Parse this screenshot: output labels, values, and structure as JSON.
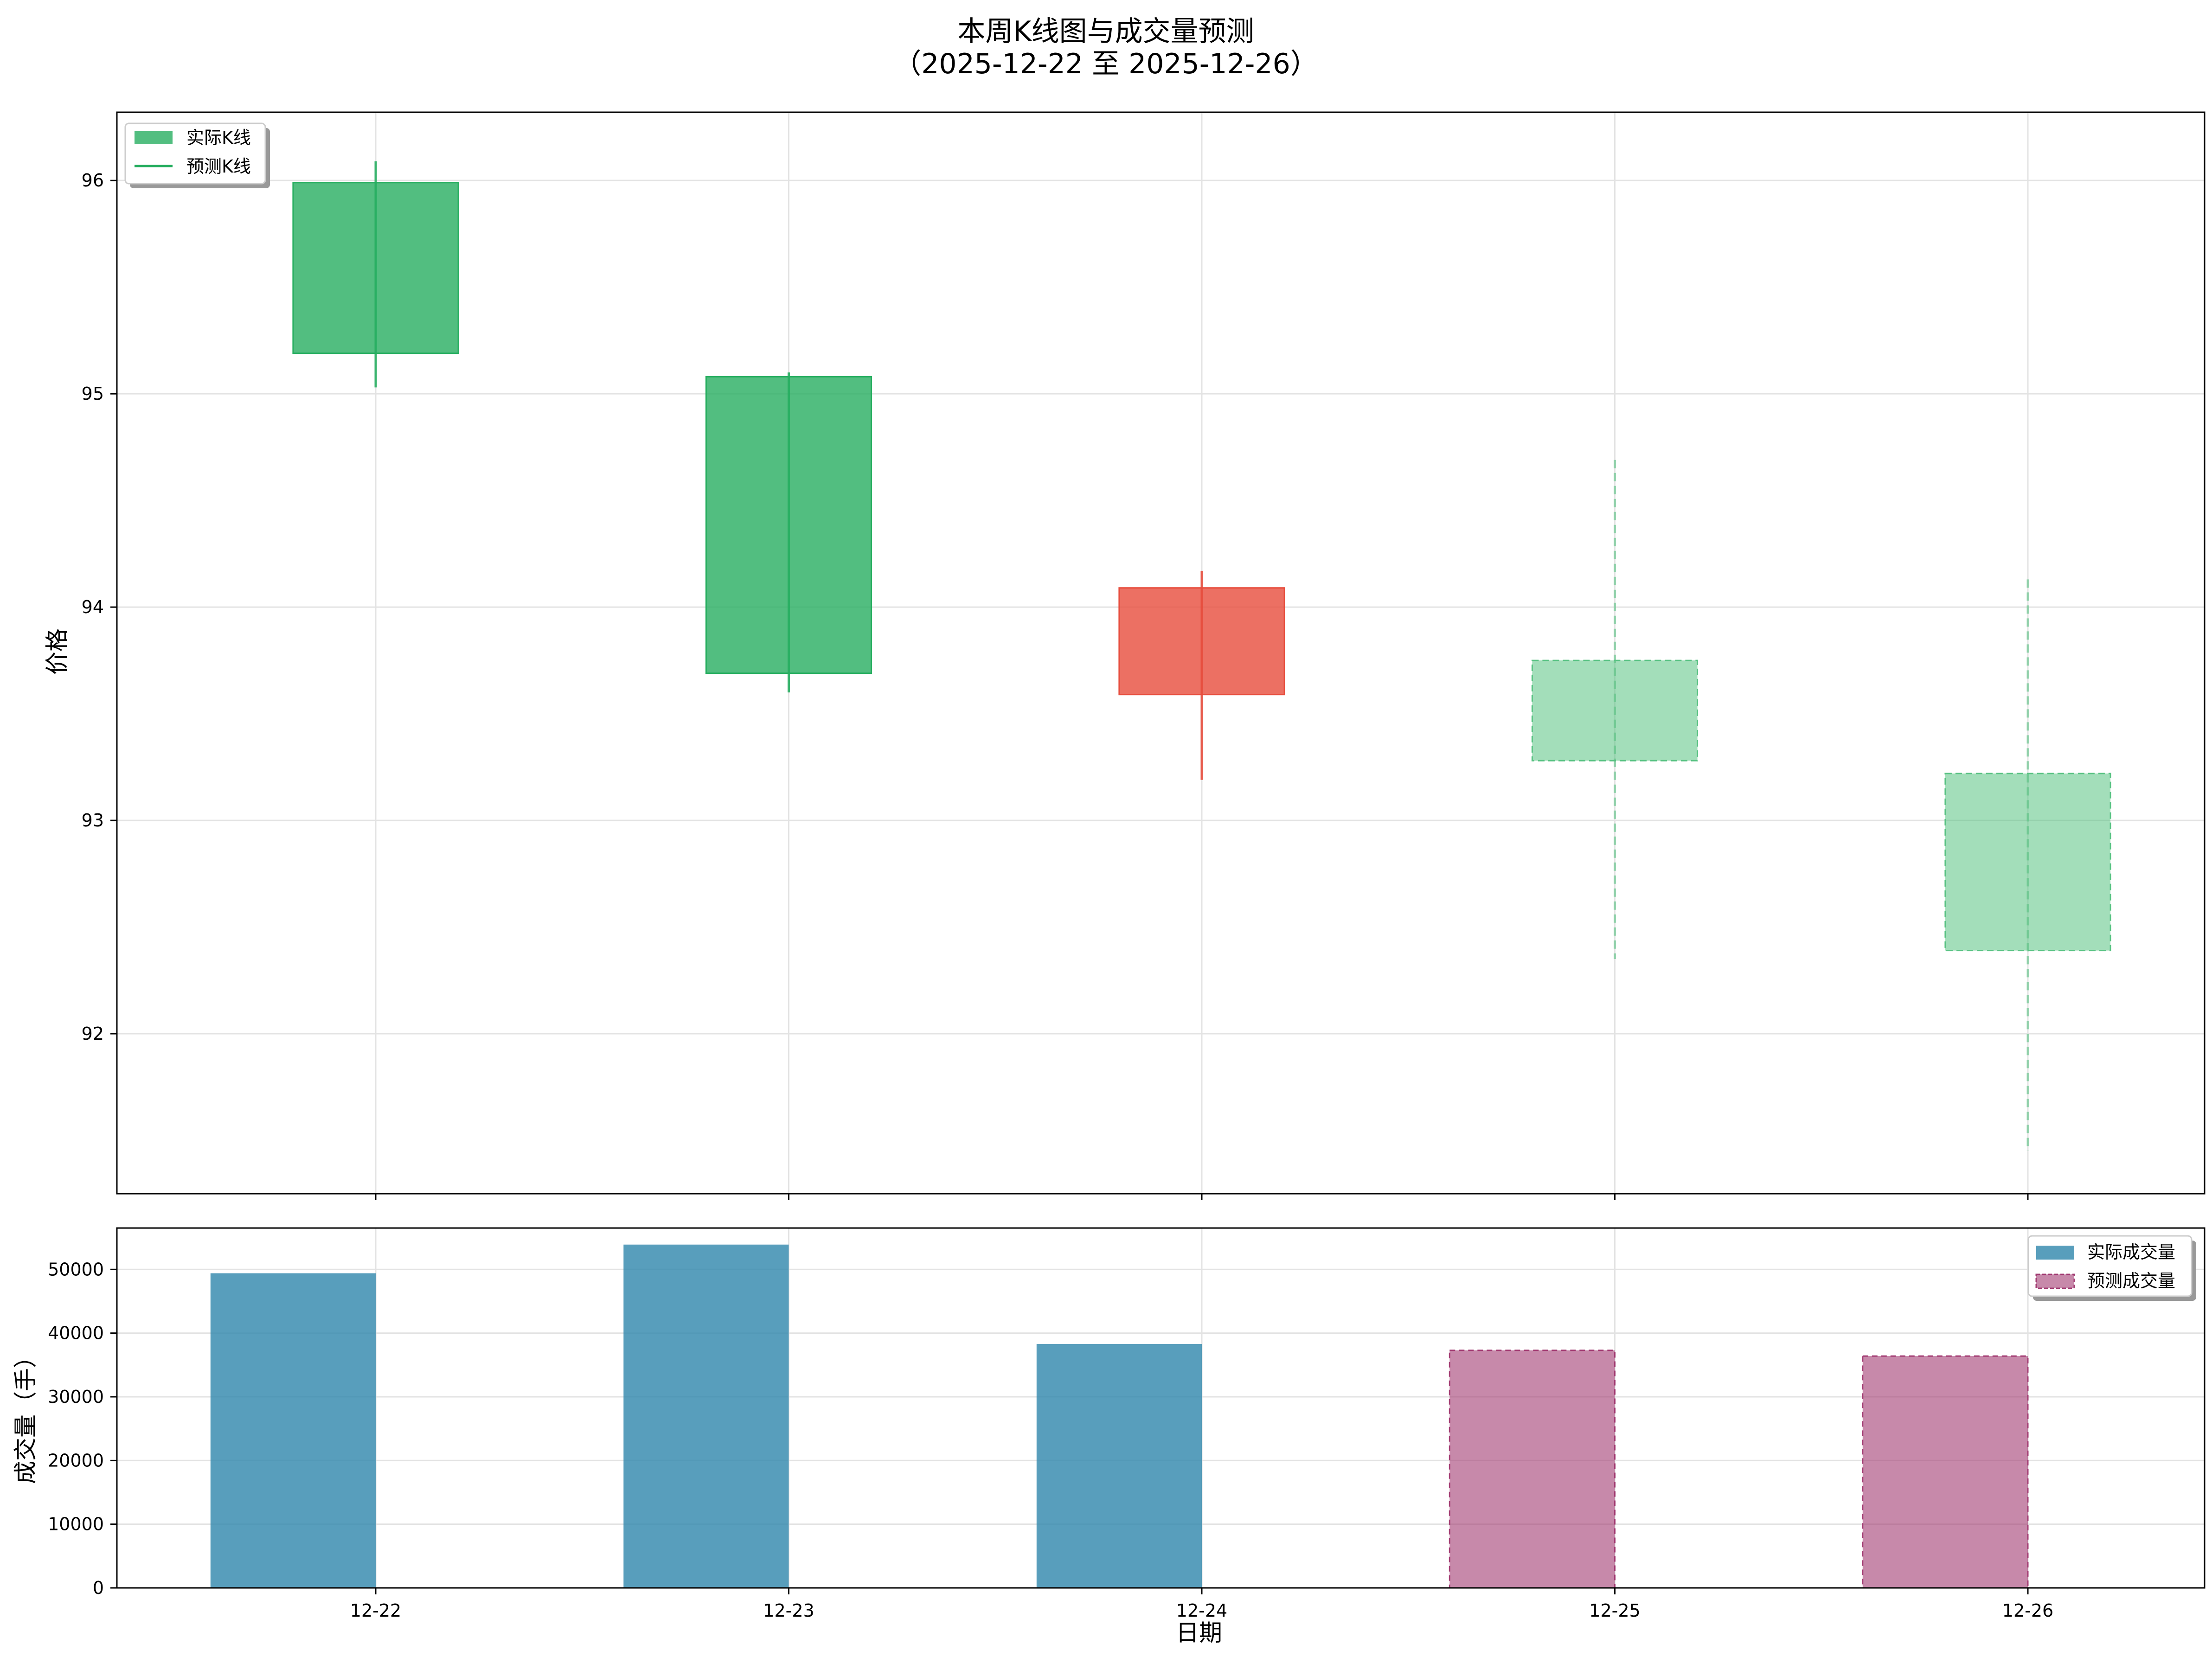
{
  "chart_data": [
    {
      "type": "candlestick",
      "title_line1": "本周K线图与成交量预测",
      "title_line2": "（2025-12-22 至 2025-12-26）",
      "ylabel": "价格",
      "x_categories": [
        "12-22",
        "12-23",
        "12-24",
        "12-25",
        "12-26"
      ],
      "ylim": [
        91.25,
        96.32
      ],
      "yticks": [
        92,
        93,
        94,
        95,
        96
      ],
      "grid": true,
      "legend_position": "top-left",
      "legend": [
        {
          "label": "实际K线",
          "style": "patch"
        },
        {
          "label": "预测K线",
          "style": "line"
        }
      ],
      "candles": [
        {
          "x": "12-22",
          "open": 95.99,
          "close": 95.19,
          "high": 96.09,
          "low": 95.03,
          "kind": "actual",
          "color": "#27ae60"
        },
        {
          "x": "12-23",
          "open": 95.08,
          "close": 93.69,
          "high": 95.1,
          "low": 93.6,
          "kind": "actual",
          "color": "#27ae60"
        },
        {
          "x": "12-24",
          "open": 93.59,
          "close": 94.09,
          "high": 94.17,
          "low": 93.19,
          "kind": "actual",
          "color": "#e74c3c"
        },
        {
          "x": "12-25",
          "open": 93.75,
          "close": 93.28,
          "high": 94.69,
          "low": 92.35,
          "kind": "predicted",
          "color": "#58c282"
        },
        {
          "x": "12-26",
          "open": 93.22,
          "close": 92.39,
          "high": 94.13,
          "low": 91.45,
          "kind": "predicted",
          "color": "#58c282"
        }
      ]
    },
    {
      "type": "bar",
      "ylabel": "成交量（手）",
      "xlabel": "日期",
      "categories": [
        "12-22",
        "12-23",
        "12-24",
        "12-25",
        "12-26"
      ],
      "ylim": [
        0,
        56500
      ],
      "yticks": [
        0,
        10000,
        20000,
        30000,
        40000,
        50000
      ],
      "grid": true,
      "legend_position": "top-right",
      "series": [
        {
          "name": "实际成交量",
          "color": "#2e86ab",
          "values": [
            49400,
            53900,
            38300,
            null,
            null
          ]
        },
        {
          "name": "预测成交量",
          "color": "#a23b72",
          "values": [
            null,
            null,
            null,
            37300,
            36400
          ]
        }
      ]
    }
  ]
}
